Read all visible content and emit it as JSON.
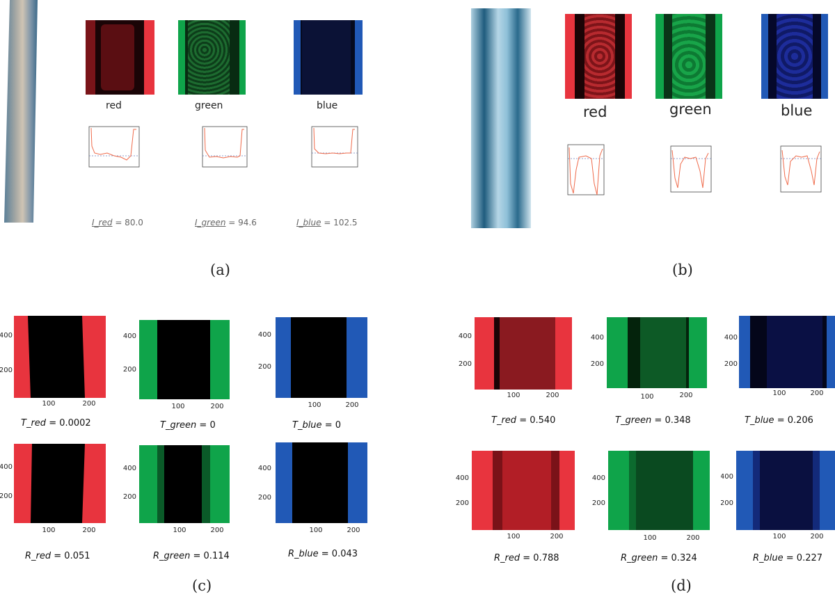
{
  "panel_labels": {
    "a": "(a)",
    "b": "(b)",
    "c": "(c)",
    "d": "(d)"
  },
  "channel_names": {
    "red": "red",
    "green": "green",
    "blue": "blue"
  },
  "colors": {
    "red": "#e8343e",
    "green": "#0fa44a",
    "blue": "#2159b6"
  },
  "panel_a": {
    "measures": [
      {
        "var": "I_red",
        "eq": "= 80.0"
      },
      {
        "var": "I_green",
        "eq": "= 94.6"
      },
      {
        "var": "I_blue",
        "eq": "= 102.5"
      }
    ]
  },
  "axis_ticks": {
    "y": [
      "400",
      "200"
    ],
    "x": [
      "100",
      "200"
    ]
  },
  "panel_c": {
    "captions": [
      {
        "var": "T_red",
        "eq": "= 0.0002"
      },
      {
        "var": "T_green",
        "eq": "= 0"
      },
      {
        "var": "T_blue",
        "eq": "= 0"
      },
      {
        "var": "R_red",
        "eq": "= 0.051"
      },
      {
        "var": "R_green",
        "eq": "= 0.114"
      },
      {
        "var": "R_blue",
        "eq": "= 0.043"
      }
    ]
  },
  "panel_d": {
    "captions": [
      {
        "var": "T_red",
        "eq": "= 0.540"
      },
      {
        "var": "T_green",
        "eq": "= 0.348"
      },
      {
        "var": "T_blue",
        "eq": "= 0.206"
      },
      {
        "var": "R_red",
        "eq": "= 0.788"
      },
      {
        "var": "R_green",
        "eq": "= 0.324"
      },
      {
        "var": "R_blue",
        "eq": "= 0.227"
      }
    ]
  }
}
